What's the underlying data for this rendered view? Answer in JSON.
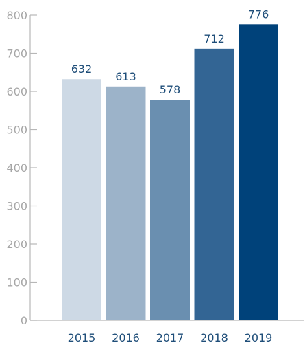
{
  "chart_data": {
    "type": "bar",
    "title": "",
    "xlabel": "",
    "ylabel": "",
    "categories": [
      "2015",
      "2016",
      "2017",
      "2018",
      "2019"
    ],
    "values": [
      632,
      613,
      578,
      712,
      776
    ],
    "data_labels": [
      "632",
      "613",
      "578",
      "712",
      "776"
    ],
    "ylim": [
      0,
      800
    ],
    "yticks": [
      0,
      100,
      200,
      300,
      400,
      500,
      600,
      700,
      800
    ],
    "ytick_labels": [
      "0",
      "100",
      "200",
      "300",
      "400",
      "500",
      "600",
      "700",
      "800"
    ],
    "grid": false,
    "legend": "none",
    "bar_colors": [
      "#cdd9e5",
      "#9cb3c9",
      "#6a8fb0",
      "#336594",
      "#00427a"
    ],
    "axis_color": "#b7b7b7",
    "tick_label_color": "#a6a6a6",
    "label_color": "#1f4e79"
  }
}
